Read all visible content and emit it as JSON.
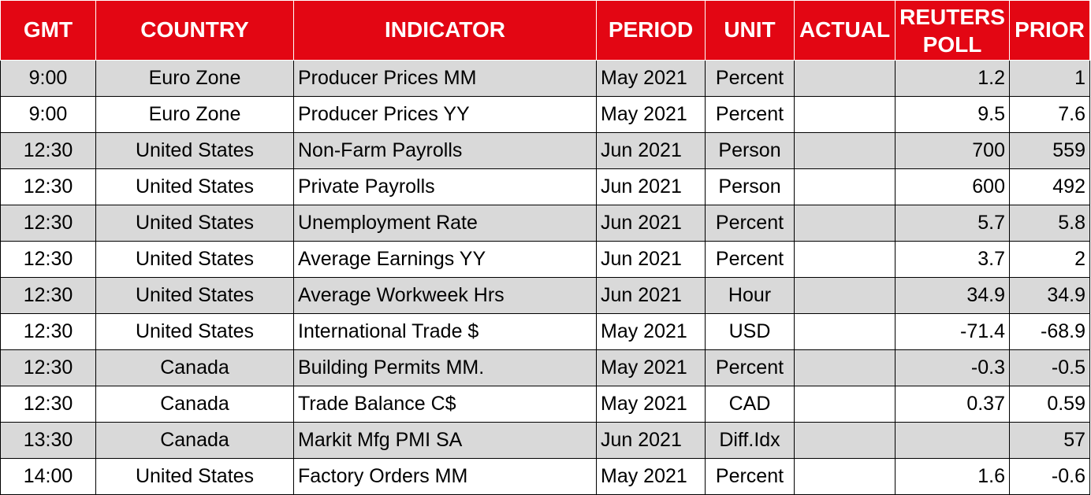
{
  "table": {
    "headers": {
      "gmt": "GMT",
      "country": "COUNTRY",
      "indicator": "INDICATOR",
      "period": "PERIOD",
      "unit": "UNIT",
      "actual": "ACTUAL",
      "reuters_poll": "REUTERS POLL",
      "prior": "PRIOR"
    },
    "rows": [
      {
        "gmt": "9:00",
        "country": "Euro Zone",
        "indicator": "Producer Prices MM",
        "period": "May 2021",
        "unit": "Percent",
        "actual": "",
        "reuters_poll": "1.2",
        "prior": "1"
      },
      {
        "gmt": "9:00",
        "country": "Euro Zone",
        "indicator": "Producer Prices YY",
        "period": "May 2021",
        "unit": "Percent",
        "actual": "",
        "reuters_poll": "9.5",
        "prior": "7.6"
      },
      {
        "gmt": "12:30",
        "country": "United States",
        "indicator": "Non-Farm Payrolls",
        "period": "Jun 2021",
        "unit": "Person",
        "actual": "",
        "reuters_poll": "700",
        "prior": "559"
      },
      {
        "gmt": "12:30",
        "country": "United States",
        "indicator": "Private Payrolls",
        "period": "Jun 2021",
        "unit": "Person",
        "actual": "",
        "reuters_poll": "600",
        "prior": "492"
      },
      {
        "gmt": "12:30",
        "country": "United States",
        "indicator": "Unemployment Rate",
        "period": "Jun 2021",
        "unit": "Percent",
        "actual": "",
        "reuters_poll": "5.7",
        "prior": "5.8"
      },
      {
        "gmt": "12:30",
        "country": "United States",
        "indicator": "Average Earnings YY",
        "period": "Jun 2021",
        "unit": "Percent",
        "actual": "",
        "reuters_poll": "3.7",
        "prior": "2"
      },
      {
        "gmt": "12:30",
        "country": "United States",
        "indicator": "Average Workweek Hrs",
        "period": "Jun 2021",
        "unit": "Hour",
        "actual": "",
        "reuters_poll": "34.9",
        "prior": "34.9"
      },
      {
        "gmt": "12:30",
        "country": "United States",
        "indicator": "International Trade $",
        "period": "May 2021",
        "unit": "USD",
        "actual": "",
        "reuters_poll": "-71.4",
        "prior": "-68.9"
      },
      {
        "gmt": "12:30",
        "country": "Canada",
        "indicator": "Building Permits MM.",
        "period": "May 2021",
        "unit": "Percent",
        "actual": "",
        "reuters_poll": "-0.3",
        "prior": "-0.5"
      },
      {
        "gmt": "12:30",
        "country": "Canada",
        "indicator": "Trade Balance C$",
        "period": "May 2021",
        "unit": "CAD",
        "actual": "",
        "reuters_poll": "0.37",
        "prior": "0.59"
      },
      {
        "gmt": "13:30",
        "country": "Canada",
        "indicator": "Markit Mfg PMI SA",
        "period": "Jun 2021",
        "unit": "Diff.Idx",
        "actual": "",
        "reuters_poll": "",
        "prior": "57"
      },
      {
        "gmt": "14:00",
        "country": "United States",
        "indicator": "Factory Orders MM",
        "period": "May 2021",
        "unit": "Percent",
        "actual": "",
        "reuters_poll": "1.6",
        "prior": "-0.6"
      }
    ]
  },
  "colors": {
    "header_background": "#e30613",
    "header_text": "#ffffff",
    "stripe_row": "#d9d9d9",
    "plain_row": "#ffffff",
    "border": "#000000"
  }
}
